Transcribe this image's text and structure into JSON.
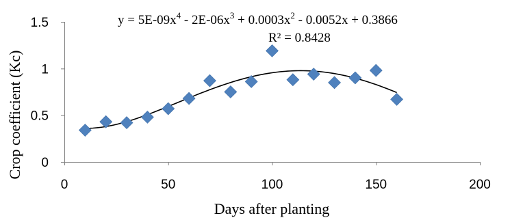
{
  "chart_data": {
    "type": "scatter",
    "title": "",
    "xlabel": "Days after planting",
    "ylabel": "Crop coefficient (Kc)",
    "xlim": [
      0,
      200
    ],
    "ylim": [
      0,
      1.5
    ],
    "x_ticks": [
      "0",
      "50",
      "100",
      "150",
      "200"
    ],
    "y_ticks": [
      "0",
      "0.5",
      "1",
      "1.5"
    ],
    "grid": false,
    "legend": "none",
    "marker": "diamond",
    "marker_color": "#4f81bd",
    "series": [
      {
        "x": [
          10,
          20,
          30,
          40,
          50,
          60,
          70,
          80,
          90,
          100,
          110,
          120,
          130,
          140,
          150,
          160
        ],
        "y": [
          0.34,
          0.43,
          0.42,
          0.48,
          0.57,
          0.68,
          0.87,
          0.75,
          0.86,
          1.19,
          0.88,
          0.94,
          0.85,
          0.9,
          0.98,
          0.67
        ]
      }
    ],
    "trendline": {
      "type": "polynomial",
      "order": 4,
      "x_range": [
        10,
        160
      ],
      "color": "#000000",
      "equation_text": {
        "segments": [
          "y = 5E-09x",
          "4",
          " - 2E-06x",
          "3",
          " + 0.0003x",
          "2",
          " - 0.0052x + 0.3866"
        ]
      },
      "r2_text": "R² = 0.8428"
    }
  }
}
